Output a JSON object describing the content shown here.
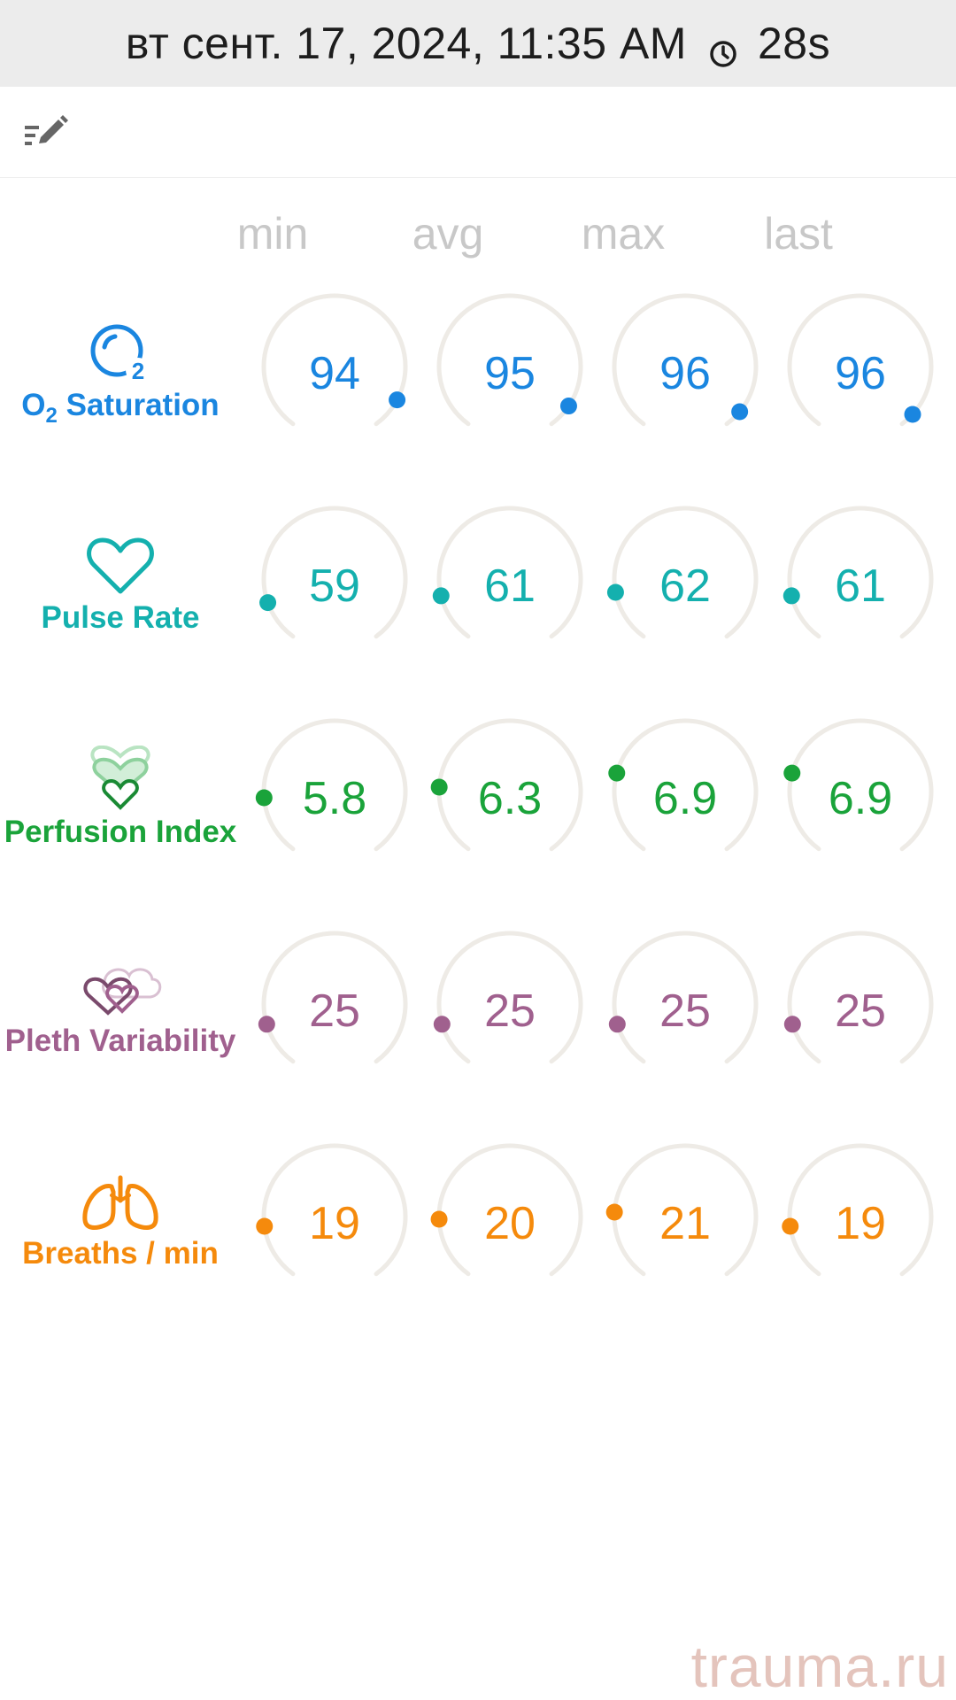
{
  "header": {
    "datetime": "вт сент. 17, 2024, 11:35 AM",
    "duration": "28s",
    "clock_icon": "clock-icon"
  },
  "toolbar": {
    "edit_icon": "edit-list-icon"
  },
  "columns": [
    "min",
    "avg",
    "max",
    "last"
  ],
  "rows": [
    {
      "key": "spo2",
      "label_main": "O",
      "label_sub": "2",
      "label_rest": " Saturation",
      "icon": "o2-saturation-icon",
      "color": "#1a86e0",
      "values": [
        "94",
        "95",
        "96",
        "96"
      ],
      "levels": [
        0.91,
        0.93,
        0.95,
        0.96
      ]
    },
    {
      "key": "pulse",
      "label": "Pulse Rate",
      "icon": "heart-icon",
      "color": "#14b0ae",
      "values": [
        "59",
        "61",
        "62",
        "61"
      ],
      "levels": [
        0.12,
        0.14,
        0.15,
        0.14
      ]
    },
    {
      "key": "pi",
      "label": "Perfusion Index",
      "icon": "perfusion-icon",
      "color": "#1aa33a",
      "values": [
        "5.8",
        "6.3",
        "6.9",
        "6.9"
      ],
      "levels": [
        0.17,
        0.2,
        0.24,
        0.24
      ]
    },
    {
      "key": "pvi",
      "label": "Pleth Variability",
      "icon": "pleth-variability-icon",
      "color": "#a0608e",
      "values": [
        "25",
        "25",
        "25",
        "25"
      ],
      "levels": [
        0.13,
        0.13,
        0.13,
        0.13
      ]
    },
    {
      "key": "rr",
      "label": "Breaths / min",
      "icon": "lungs-icon",
      "color": "#f58a0c",
      "values": [
        "19",
        "20",
        "21",
        "19"
      ],
      "levels": [
        0.16,
        0.18,
        0.2,
        0.16
      ]
    }
  ],
  "watermark": "trauma.ru"
}
